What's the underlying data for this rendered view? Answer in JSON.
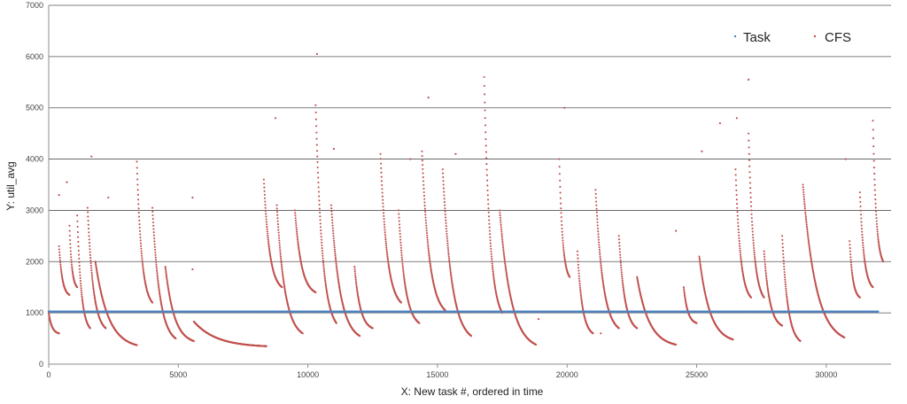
{
  "chart_data": {
    "type": "scatter",
    "xlabel": "X: New task #, ordered in time",
    "ylabel": "Y: util_avg",
    "xlim": [
      0,
      32500
    ],
    "ylim": [
      0,
      7000
    ],
    "x_ticks": [
      0,
      5000,
      10000,
      15000,
      20000,
      25000,
      30000
    ],
    "y_ticks": [
      0,
      1000,
      2000,
      3000,
      4000,
      5000,
      6000,
      7000
    ],
    "x_tick_labels": [
      "0",
      "5000",
      "10000",
      "15000",
      "20000",
      "25000",
      "30000"
    ],
    "y_tick_labels": [
      "0",
      "1000",
      "2000",
      "3000",
      "4000",
      "5000",
      "6000",
      "7000"
    ],
    "grid": "horizontal",
    "legend_position": "top-right",
    "colors": {
      "task": "#4f81bd",
      "cfs": "#c0504d",
      "grid": "#555555",
      "axis": "#8c8c8c"
    },
    "series": [
      {
        "name": "Task",
        "color": "#4f81bd",
        "style": "dense points at constant value",
        "x_range": [
          0,
          32000
        ],
        "value": 1024
      },
      {
        "name": "CFS",
        "color": "#c0504d",
        "decay_curves": [
          {
            "x_start": 0,
            "x_end": 400,
            "y_start": 1000,
            "y_end": 600
          },
          {
            "x_start": 400,
            "x_end": 800,
            "y_start": 2300,
            "y_end": 1350
          },
          {
            "x_start": 800,
            "x_end": 1100,
            "y_start": 2700,
            "y_end": 1500
          },
          {
            "x_start": 1100,
            "x_end": 1600,
            "y_start": 2900,
            "y_end": 700
          },
          {
            "x_start": 1500,
            "x_end": 2200,
            "y_start": 3050,
            "y_end": 700
          },
          {
            "x_start": 1800,
            "x_end": 3400,
            "y_start": 2000,
            "y_end": 370
          },
          {
            "x_start": 3400,
            "x_end": 4000,
            "y_start": 3950,
            "y_end": 1200
          },
          {
            "x_start": 4000,
            "x_end": 4900,
            "y_start": 3050,
            "y_end": 500
          },
          {
            "x_start": 4500,
            "x_end": 5600,
            "y_start": 1900,
            "y_end": 450
          },
          {
            "x_start": 5600,
            "x_end": 8400,
            "y_start": 830,
            "y_end": 350
          },
          {
            "x_start": 8300,
            "x_end": 9000,
            "y_start": 3600,
            "y_end": 1500
          },
          {
            "x_start": 8800,
            "x_end": 9800,
            "y_start": 3100,
            "y_end": 600
          },
          {
            "x_start": 9500,
            "x_end": 10300,
            "y_start": 3000,
            "y_end": 1400
          },
          {
            "x_start": 10300,
            "x_end": 11100,
            "y_start": 5050,
            "y_end": 800
          },
          {
            "x_start": 10900,
            "x_end": 12000,
            "y_start": 3100,
            "y_end": 550
          },
          {
            "x_start": 11800,
            "x_end": 12500,
            "y_start": 1900,
            "y_end": 700
          },
          {
            "x_start": 12800,
            "x_end": 13600,
            "y_start": 4100,
            "y_end": 1200
          },
          {
            "x_start": 13500,
            "x_end": 14300,
            "y_start": 3000,
            "y_end": 800
          },
          {
            "x_start": 14400,
            "x_end": 15300,
            "y_start": 4150,
            "y_end": 1050
          },
          {
            "x_start": 15200,
            "x_end": 16300,
            "y_start": 3800,
            "y_end": 550
          },
          {
            "x_start": 16800,
            "x_end": 17500,
            "y_start": 5600,
            "y_end": 1000
          },
          {
            "x_start": 17400,
            "x_end": 18800,
            "y_start": 3000,
            "y_end": 380
          },
          {
            "x_start": 19700,
            "x_end": 20100,
            "y_start": 4000,
            "y_end": 1700
          },
          {
            "x_start": 20400,
            "x_end": 21000,
            "y_start": 2200,
            "y_end": 600
          },
          {
            "x_start": 21100,
            "x_end": 22000,
            "y_start": 3400,
            "y_end": 700
          },
          {
            "x_start": 22000,
            "x_end": 22700,
            "y_start": 2500,
            "y_end": 700
          },
          {
            "x_start": 22700,
            "x_end": 24200,
            "y_start": 1700,
            "y_end": 380
          },
          {
            "x_start": 24500,
            "x_end": 25000,
            "y_start": 1500,
            "y_end": 800
          },
          {
            "x_start": 25100,
            "x_end": 26400,
            "y_start": 2100,
            "y_end": 480
          },
          {
            "x_start": 26500,
            "x_end": 27100,
            "y_start": 3800,
            "y_end": 1300
          },
          {
            "x_start": 27000,
            "x_end": 27600,
            "y_start": 4500,
            "y_end": 1300
          },
          {
            "x_start": 27600,
            "x_end": 28300,
            "y_start": 2200,
            "y_end": 750
          },
          {
            "x_start": 28300,
            "x_end": 29000,
            "y_start": 2500,
            "y_end": 450
          },
          {
            "x_start": 29100,
            "x_end": 30700,
            "y_start": 3500,
            "y_end": 520
          },
          {
            "x_start": 30900,
            "x_end": 31300,
            "y_start": 2400,
            "y_end": 1300
          },
          {
            "x_start": 31300,
            "x_end": 31800,
            "y_start": 3350,
            "y_end": 1500
          },
          {
            "x_start": 31800,
            "x_end": 32200,
            "y_start": 4750,
            "y_end": 2000
          }
        ],
        "outliers": [
          {
            "x": 10350,
            "y": 6050
          },
          {
            "x": 14650,
            "y": 5200
          },
          {
            "x": 27000,
            "y": 5550
          },
          {
            "x": 19900,
            "y": 5000
          },
          {
            "x": 26550,
            "y": 4800
          },
          {
            "x": 8750,
            "y": 4800
          },
          {
            "x": 1650,
            "y": 4050
          },
          {
            "x": 13950,
            "y": 4000
          },
          {
            "x": 11000,
            "y": 4200
          },
          {
            "x": 15700,
            "y": 4100
          },
          {
            "x": 25200,
            "y": 4150
          },
          {
            "x": 30750,
            "y": 4000
          },
          {
            "x": 5550,
            "y": 3250
          },
          {
            "x": 5550,
            "y": 1850
          },
          {
            "x": 700,
            "y": 3550
          },
          {
            "x": 400,
            "y": 3300
          },
          {
            "x": 2300,
            "y": 3250
          },
          {
            "x": 18900,
            "y": 880
          },
          {
            "x": 21300,
            "y": 600
          },
          {
            "x": 24200,
            "y": 2600
          },
          {
            "x": 25900,
            "y": 4700
          }
        ]
      }
    ]
  }
}
